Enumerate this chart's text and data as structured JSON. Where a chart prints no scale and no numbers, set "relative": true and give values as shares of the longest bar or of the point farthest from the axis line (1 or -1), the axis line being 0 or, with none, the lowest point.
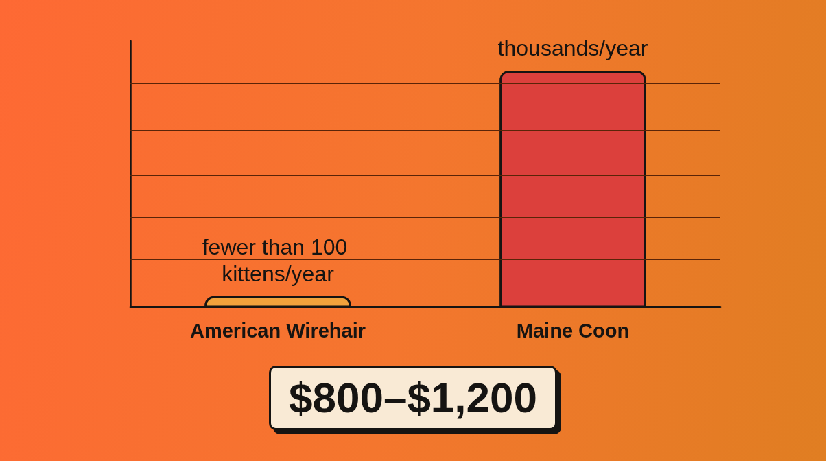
{
  "chart_data": {
    "type": "bar",
    "relative": true,
    "categories": [
      "American Wirehair",
      "Maine Coon"
    ],
    "values": [
      0.04,
      1
    ],
    "colors": [
      "#f2a23c",
      "#dc403c"
    ],
    "annotations": [
      {
        "text": "fewer than 100 kittens/year",
        "x": "American Wirehair",
        "y": 0.04
      },
      {
        "text": "thousands/year",
        "x": "Maine Coon",
        "y": 1
      },
      "$800–$1,200"
    ],
    "ref_lines": [
      {
        "axis": "y",
        "value": 0.2,
        "color": "#5a2408"
      },
      {
        "axis": "y",
        "value": 0.38,
        "color": "#5a2408"
      },
      {
        "axis": "y",
        "value": 0.56,
        "color": "#5a2408"
      },
      {
        "axis": "y",
        "value": 0.75,
        "color": "#5a2408"
      },
      {
        "axis": "y",
        "value": 0.95,
        "color": "#5a2408"
      }
    ]
  }
}
